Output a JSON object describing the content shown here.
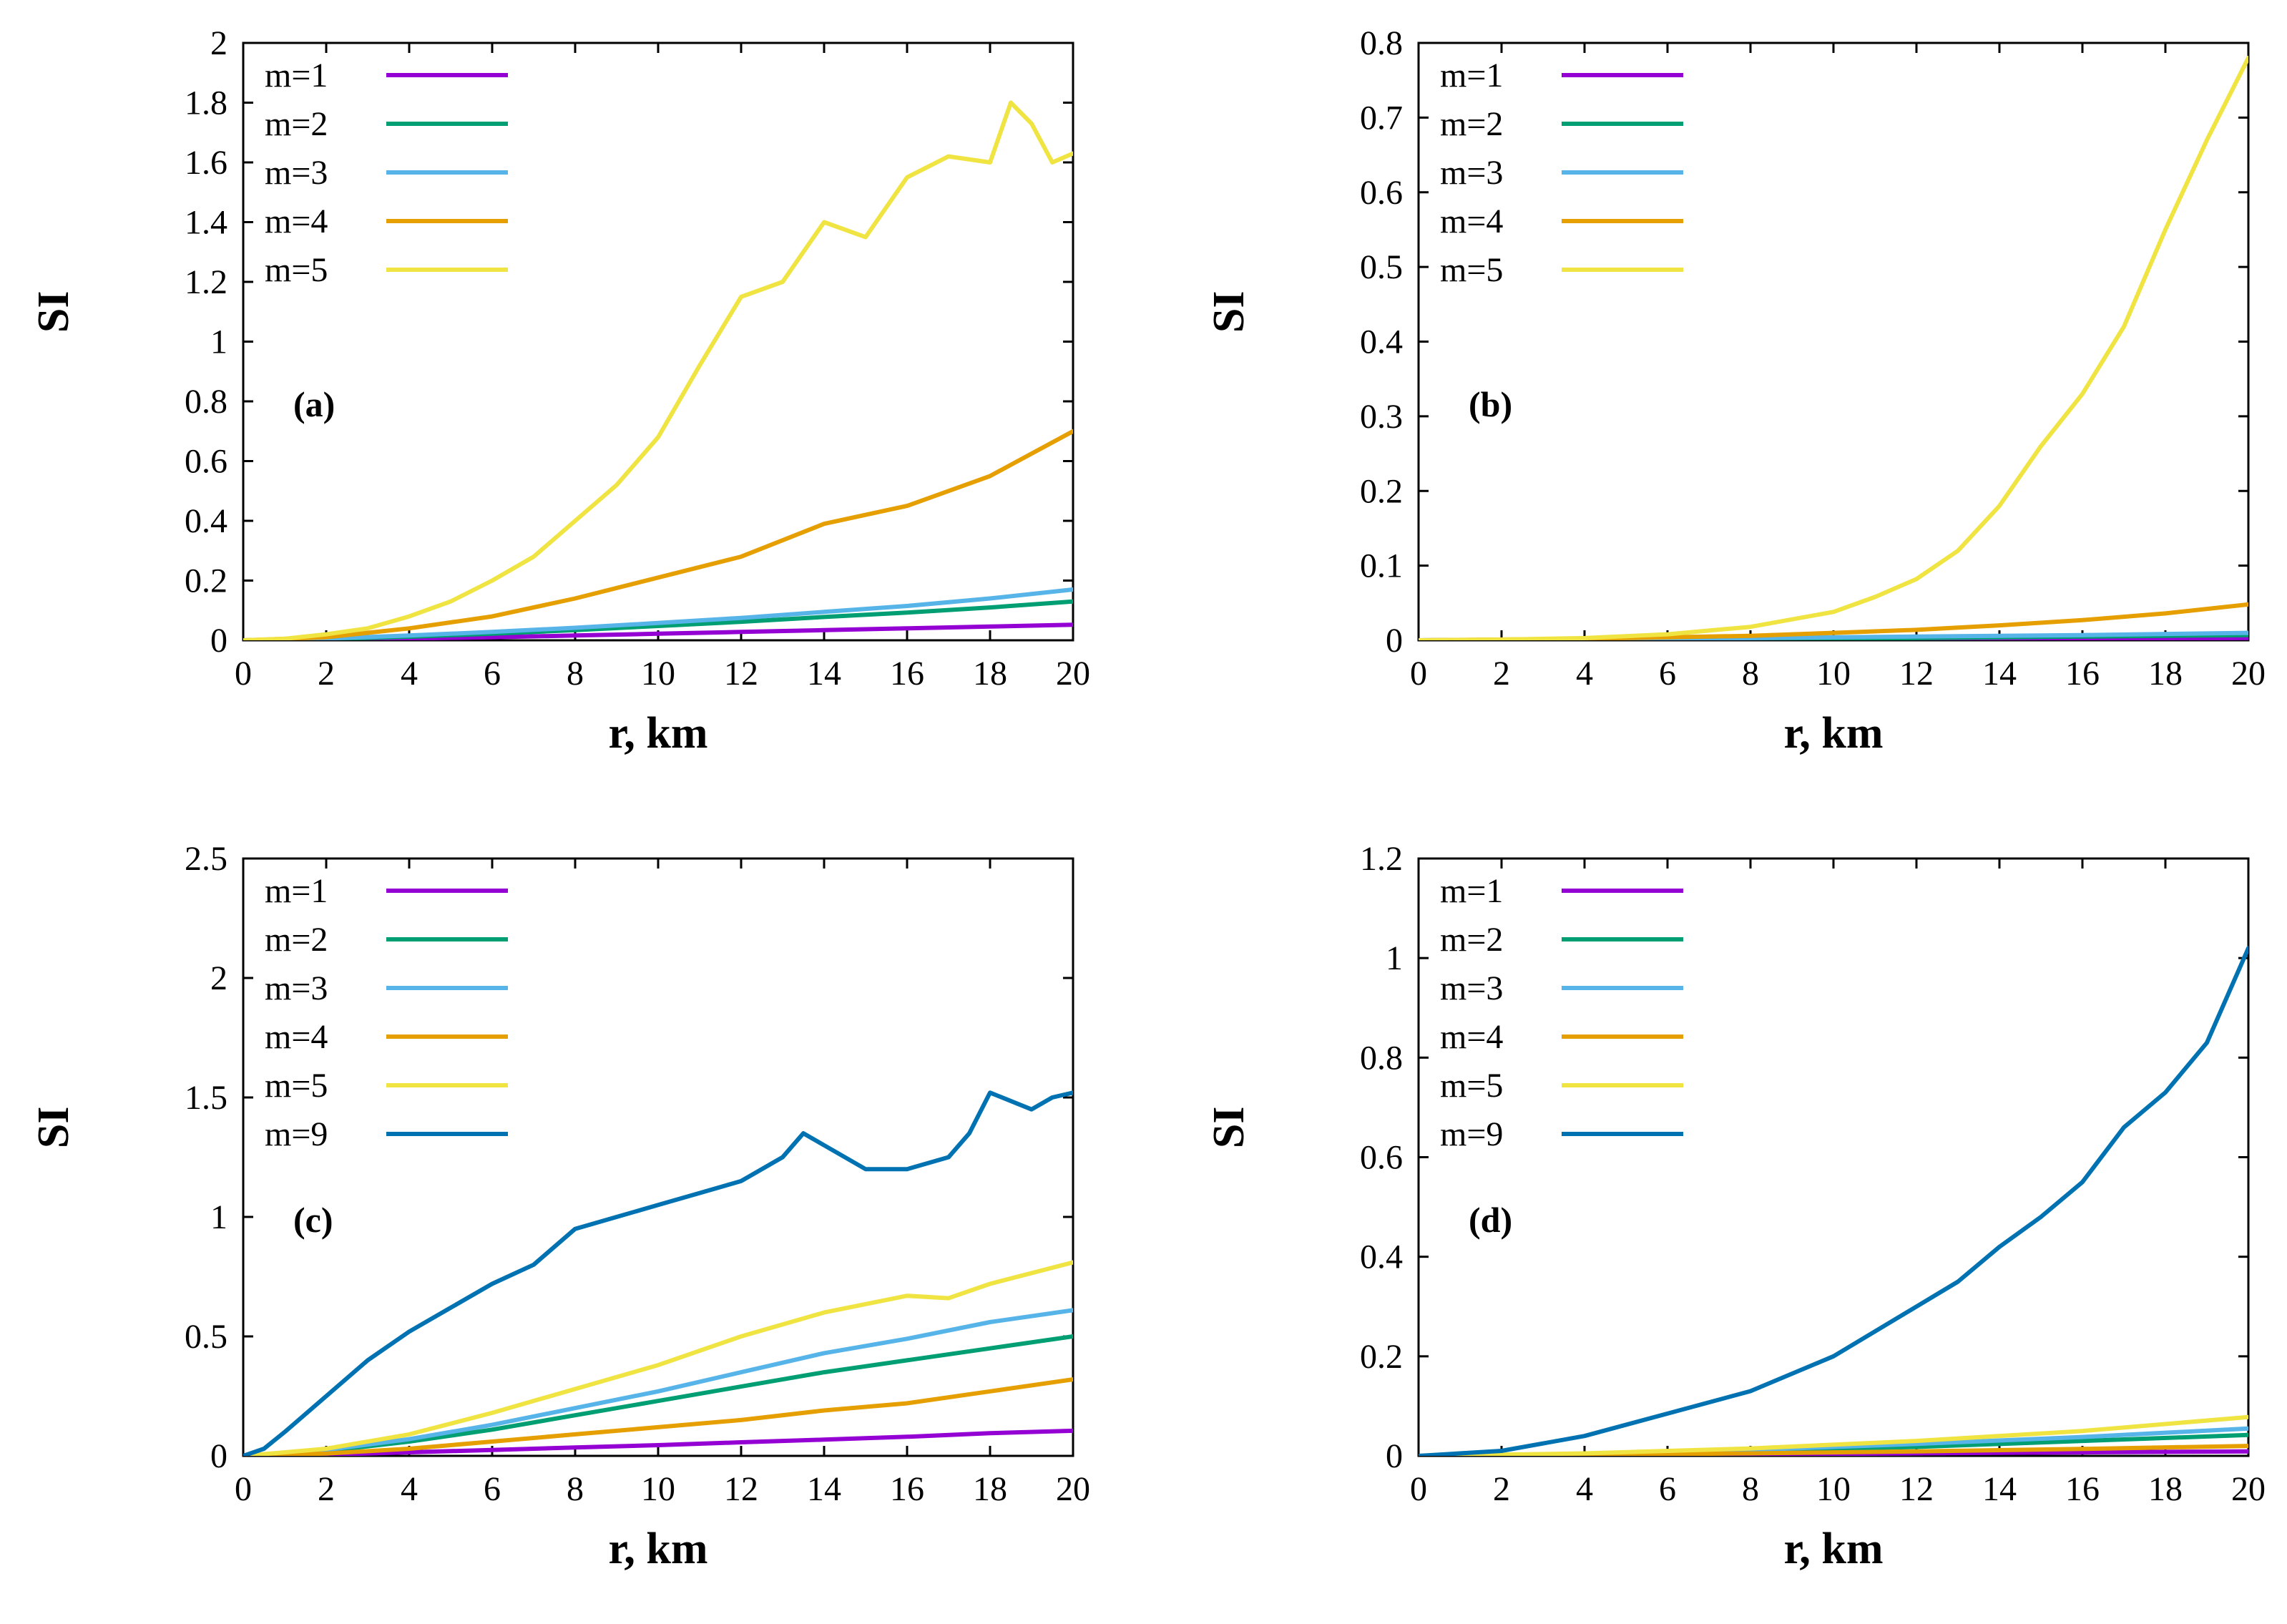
{
  "colors": {
    "m1": "#9400d3",
    "m2": "#009e73",
    "m3": "#56b4e9",
    "m4": "#e69f00",
    "m5": "#f0e442",
    "m9": "#0072b2"
  },
  "chart_data": [
    {
      "type": "line",
      "panel": "(a)",
      "xlabel": "r, km",
      "ylabel": "SI",
      "xlim": [
        0,
        20
      ],
      "ylim": [
        0,
        2
      ],
      "xticks": [
        0,
        2,
        4,
        6,
        8,
        10,
        12,
        14,
        16,
        18,
        20
      ],
      "yticks": [
        0,
        0.2,
        0.4,
        0.6,
        0.8,
        1,
        1.2,
        1.4,
        1.6,
        1.8,
        2
      ],
      "ytick_labels": [
        "0",
        "0.2",
        "0.4",
        "0.6",
        "0.8",
        "1",
        "1.2",
        "1.4",
        "1.6",
        "1.8",
        "2"
      ],
      "legend_position": "top-left",
      "series": [
        {
          "name": "m=1",
          "color_key": "m1",
          "x": [
            0,
            2,
            4,
            6,
            8,
            10,
            12,
            14,
            16,
            18,
            20
          ],
          "values": [
            0,
            0.002,
            0.006,
            0.01,
            0.016,
            0.022,
            0.028,
            0.034,
            0.04,
            0.046,
            0.052
          ]
        },
        {
          "name": "m=2",
          "color_key": "m2",
          "x": [
            0,
            2,
            4,
            6,
            8,
            10,
            12,
            14,
            16,
            18,
            20
          ],
          "values": [
            0,
            0.004,
            0.012,
            0.022,
            0.034,
            0.048,
            0.062,
            0.078,
            0.093,
            0.11,
            0.13
          ]
        },
        {
          "name": "m=3",
          "color_key": "m3",
          "x": [
            0,
            2,
            4,
            6,
            8,
            10,
            12,
            14,
            16,
            18,
            20
          ],
          "values": [
            0,
            0.006,
            0.016,
            0.028,
            0.042,
            0.058,
            0.075,
            0.095,
            0.115,
            0.14,
            0.17
          ]
        },
        {
          "name": "m=4",
          "color_key": "m4",
          "x": [
            0,
            2,
            4,
            6,
            8,
            10,
            12,
            14,
            16,
            18,
            20
          ],
          "values": [
            0,
            0.01,
            0.04,
            0.08,
            0.14,
            0.21,
            0.28,
            0.39,
            0.45,
            0.55,
            0.7
          ]
        },
        {
          "name": "m=5",
          "color_key": "m5",
          "x": [
            0,
            1,
            2,
            3,
            4,
            5,
            6,
            7,
            8,
            9,
            10,
            11,
            12,
            13,
            14,
            15,
            16,
            17,
            18,
            18.5,
            19,
            19.5,
            20
          ],
          "values": [
            0,
            0.005,
            0.02,
            0.04,
            0.08,
            0.13,
            0.2,
            0.28,
            0.4,
            0.52,
            0.68,
            0.92,
            1.15,
            1.2,
            1.4,
            1.35,
            1.55,
            1.62,
            1.6,
            1.8,
            1.73,
            1.6,
            1.63
          ]
        }
      ]
    },
    {
      "type": "line",
      "panel": "(b)",
      "xlabel": "r, km",
      "ylabel": "SI",
      "xlim": [
        0,
        20
      ],
      "ylim": [
        0,
        0.8
      ],
      "xticks": [
        0,
        2,
        4,
        6,
        8,
        10,
        12,
        14,
        16,
        18,
        20
      ],
      "yticks": [
        0,
        0.1,
        0.2,
        0.3,
        0.4,
        0.5,
        0.6,
        0.7,
        0.8
      ],
      "ytick_labels": [
        "0",
        "0.1",
        "0.2",
        "0.3",
        "0.4",
        "0.5",
        "0.6",
        "0.7",
        "0.8"
      ],
      "legend_position": "top-left",
      "series": [
        {
          "name": "m=1",
          "color_key": "m1",
          "x": [
            0,
            4,
            8,
            12,
            16,
            20
          ],
          "values": [
            0,
            0.0005,
            0.001,
            0.0015,
            0.002,
            0.003
          ]
        },
        {
          "name": "m=2",
          "color_key": "m2",
          "x": [
            0,
            4,
            8,
            12,
            16,
            20
          ],
          "values": [
            0,
            0.001,
            0.002,
            0.003,
            0.005,
            0.007
          ]
        },
        {
          "name": "m=3",
          "color_key": "m3",
          "x": [
            0,
            4,
            8,
            12,
            16,
            20
          ],
          "values": [
            0,
            0.001,
            0.003,
            0.005,
            0.007,
            0.01
          ]
        },
        {
          "name": "m=4",
          "color_key": "m4",
          "x": [
            0,
            4,
            8,
            10,
            12,
            14,
            16,
            18,
            20
          ],
          "values": [
            0,
            0.002,
            0.006,
            0.01,
            0.014,
            0.02,
            0.027,
            0.036,
            0.048
          ]
        },
        {
          "name": "m=5",
          "color_key": "m5",
          "x": [
            0,
            2,
            4,
            6,
            8,
            10,
            11,
            12,
            13,
            14,
            15,
            16,
            17,
            18,
            19,
            20
          ],
          "values": [
            0,
            0.001,
            0.003,
            0.008,
            0.018,
            0.038,
            0.058,
            0.082,
            0.12,
            0.18,
            0.26,
            0.33,
            0.42,
            0.55,
            0.67,
            0.78
          ]
        }
      ]
    },
    {
      "type": "line",
      "panel": "(c)",
      "xlabel": "r, km",
      "ylabel": "SI",
      "xlim": [
        0,
        20
      ],
      "ylim": [
        0,
        2.5
      ],
      "xticks": [
        0,
        2,
        4,
        6,
        8,
        10,
        12,
        14,
        16,
        18,
        20
      ],
      "yticks": [
        0,
        0.5,
        1,
        1.5,
        2,
        2.5
      ],
      "ytick_labels": [
        "0",
        "0.5",
        "1",
        "1.5",
        "2",
        "2.5"
      ],
      "legend_position": "top-left",
      "series": [
        {
          "name": "m=1",
          "color_key": "m1",
          "x": [
            0,
            2,
            4,
            6,
            8,
            10,
            12,
            14,
            16,
            18,
            20
          ],
          "values": [
            0,
            0.005,
            0.015,
            0.025,
            0.035,
            0.045,
            0.057,
            0.068,
            0.08,
            0.095,
            0.105
          ]
        },
        {
          "name": "m=2",
          "color_key": "m2",
          "x": [
            0,
            2,
            4,
            6,
            8,
            10,
            12,
            14,
            16,
            18,
            20
          ],
          "values": [
            0,
            0.02,
            0.06,
            0.11,
            0.17,
            0.23,
            0.29,
            0.35,
            0.4,
            0.45,
            0.5
          ]
        },
        {
          "name": "m=3",
          "color_key": "m3",
          "x": [
            0,
            2,
            4,
            6,
            8,
            10,
            12,
            14,
            16,
            18,
            20
          ],
          "values": [
            0,
            0.025,
            0.07,
            0.13,
            0.2,
            0.27,
            0.35,
            0.43,
            0.49,
            0.56,
            0.61
          ]
        },
        {
          "name": "m=4",
          "color_key": "m4",
          "x": [
            0,
            2,
            4,
            6,
            8,
            10,
            12,
            14,
            16,
            18,
            20
          ],
          "values": [
            0,
            0.01,
            0.03,
            0.06,
            0.09,
            0.12,
            0.15,
            0.19,
            0.22,
            0.27,
            0.32
          ]
        },
        {
          "name": "m=5",
          "color_key": "m5",
          "x": [
            0,
            2,
            4,
            6,
            8,
            10,
            12,
            14,
            16,
            17,
            18,
            20
          ],
          "values": [
            0,
            0.03,
            0.09,
            0.18,
            0.28,
            0.38,
            0.5,
            0.6,
            0.67,
            0.66,
            0.72,
            0.81
          ]
        },
        {
          "name": "m=9",
          "color_key": "m9",
          "x": [
            0,
            0.5,
            1,
            2,
            3,
            4,
            5,
            6,
            7,
            8,
            9,
            10,
            11,
            12,
            13,
            13.5,
            14,
            15,
            16,
            17,
            17.5,
            18,
            19,
            19.5,
            20
          ],
          "values": [
            0,
            0.03,
            0.1,
            0.25,
            0.4,
            0.52,
            0.62,
            0.72,
            0.8,
            0.95,
            1.0,
            1.05,
            1.1,
            1.15,
            1.25,
            1.35,
            1.3,
            1.2,
            1.2,
            1.25,
            1.35,
            1.52,
            1.45,
            1.5,
            1.52
          ]
        }
      ]
    },
    {
      "type": "line",
      "panel": "(d)",
      "xlabel": "r, km",
      "ylabel": "SI",
      "xlim": [
        0,
        20
      ],
      "ylim": [
        0,
        1.2
      ],
      "xticks": [
        0,
        2,
        4,
        6,
        8,
        10,
        12,
        14,
        16,
        18,
        20
      ],
      "yticks": [
        0,
        0.2,
        0.4,
        0.6,
        0.8,
        1,
        1.2
      ],
      "ytick_labels": [
        "0",
        "0.2",
        "0.4",
        "0.6",
        "0.8",
        "1",
        "1.2"
      ],
      "legend_position": "top-left",
      "series": [
        {
          "name": "m=1",
          "color_key": "m1",
          "x": [
            0,
            4,
            8,
            12,
            16,
            20
          ],
          "values": [
            0,
            0.001,
            0.003,
            0.005,
            0.007,
            0.009
          ]
        },
        {
          "name": "m=2",
          "color_key": "m2",
          "x": [
            0,
            4,
            8,
            12,
            16,
            20
          ],
          "values": [
            0,
            0.003,
            0.01,
            0.018,
            0.03,
            0.042
          ]
        },
        {
          "name": "m=3",
          "color_key": "m3",
          "x": [
            0,
            4,
            8,
            12,
            16,
            20
          ],
          "values": [
            0,
            0.004,
            0.012,
            0.024,
            0.038,
            0.055
          ]
        },
        {
          "name": "m=4",
          "color_key": "m4",
          "x": [
            0,
            4,
            8,
            12,
            16,
            20
          ],
          "values": [
            0,
            0.002,
            0.005,
            0.009,
            0.014,
            0.02
          ]
        },
        {
          "name": "m=5",
          "color_key": "m5",
          "x": [
            0,
            4,
            8,
            12,
            16,
            20
          ],
          "values": [
            0,
            0.005,
            0.015,
            0.03,
            0.05,
            0.078
          ]
        },
        {
          "name": "m=9",
          "color_key": "m9",
          "x": [
            0,
            2,
            4,
            6,
            8,
            10,
            12,
            13,
            14,
            15,
            16,
            17,
            18,
            19,
            20
          ],
          "values": [
            0,
            0.01,
            0.04,
            0.085,
            0.13,
            0.2,
            0.3,
            0.35,
            0.42,
            0.48,
            0.55,
            0.66,
            0.73,
            0.83,
            1.02
          ]
        }
      ]
    }
  ]
}
